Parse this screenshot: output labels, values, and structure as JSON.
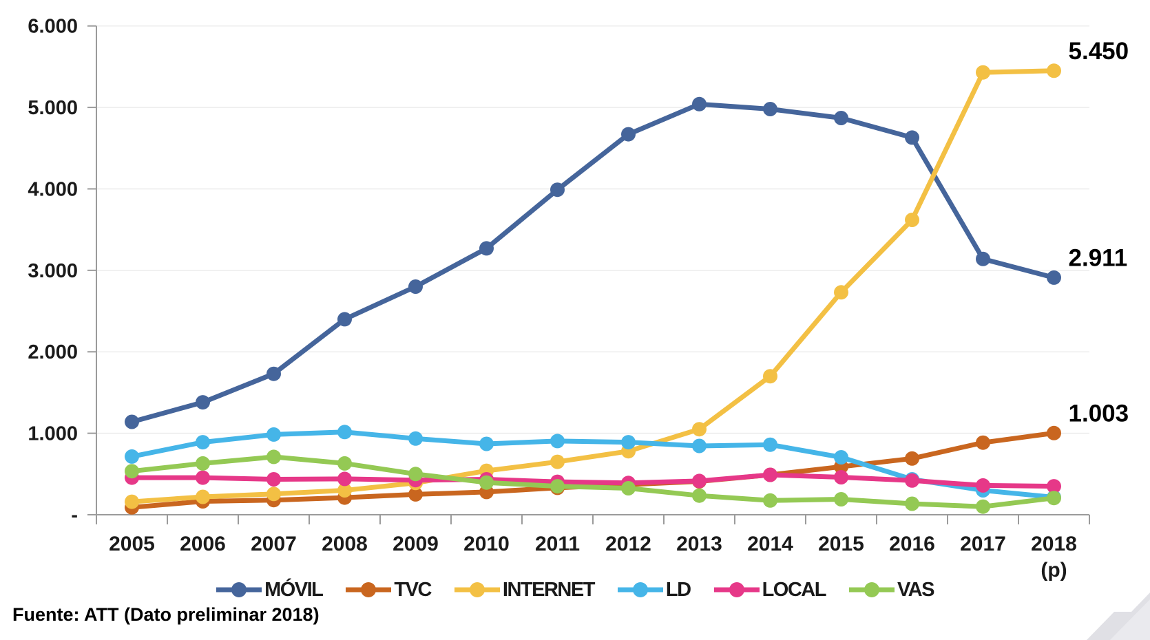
{
  "source_note": "Fuente: ATT (Dato preliminar 2018)",
  "y_axis": {
    "tick_labels": [
      "6.000",
      "5.000",
      "4.000",
      "3.000",
      "2.000",
      "1.000",
      "-"
    ],
    "tick_values": [
      6000,
      5000,
      4000,
      3000,
      2000,
      1000,
      0
    ]
  },
  "x_axis": {
    "categories": [
      "2005",
      "2006",
      "2007",
      "2008",
      "2009",
      "2010",
      "2011",
      "2012",
      "2013",
      "2014",
      "2015",
      "2016",
      "2017",
      "2018"
    ],
    "preliminary_label": "(p)"
  },
  "chart_data": {
    "type": "line",
    "title": "",
    "xlabel": "",
    "ylabel": "",
    "ylim": [
      0,
      6000
    ],
    "grid": true,
    "legend_position": "bottom",
    "categories": [
      2005,
      2006,
      2007,
      2008,
      2009,
      2010,
      2011,
      2012,
      2013,
      2014,
      2015,
      2016,
      2017,
      2018
    ],
    "series": [
      {
        "name": "MÓVIL",
        "color": "#45659B",
        "values": [
          1140,
          1380,
          1730,
          2400,
          2800,
          3270,
          3990,
          4670,
          5040,
          4980,
          4870,
          4630,
          3140,
          2911
        ]
      },
      {
        "name": "TVC",
        "color": "#C9661F",
        "values": [
          90,
          165,
          180,
          210,
          250,
          280,
          330,
          370,
          410,
          490,
          590,
          690,
          885,
          1003
        ]
      },
      {
        "name": "INTERNET",
        "color": "#F3C044",
        "values": [
          160,
          220,
          255,
          300,
          390,
          540,
          650,
          780,
          1050,
          1700,
          2730,
          3620,
          5430,
          5450
        ]
      },
      {
        "name": "LD",
        "color": "#45B5E8",
        "values": [
          715,
          890,
          985,
          1015,
          935,
          870,
          905,
          890,
          845,
          860,
          705,
          435,
          300,
          215
        ]
      },
      {
        "name": "LOCAL",
        "color": "#E63888",
        "values": [
          455,
          455,
          435,
          440,
          425,
          435,
          405,
          390,
          415,
          490,
          460,
          420,
          360,
          350
        ]
      },
      {
        "name": "VAS",
        "color": "#94C954",
        "values": [
          535,
          630,
          710,
          630,
          500,
          395,
          350,
          325,
          235,
          175,
          190,
          135,
          100,
          205
        ]
      }
    ],
    "annotations": [
      {
        "series": "INTERNET",
        "label": "5.450"
      },
      {
        "series": "MÓVIL",
        "label": "2.911"
      },
      {
        "series": "TVC",
        "label": "1.003"
      }
    ]
  }
}
